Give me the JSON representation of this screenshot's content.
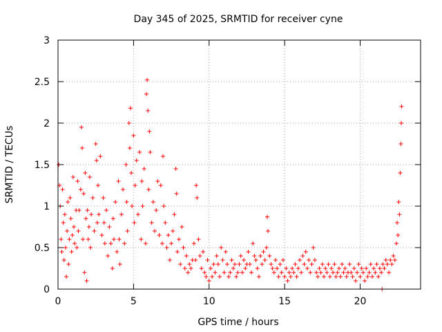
{
  "chart_data": {
    "type": "scatter",
    "title": "Day 345 of 2025, SRMTID for receiver cyne",
    "xlabel": "GPS time / hours",
    "ylabel": "SRMTID / TECUs",
    "xlim": [
      0,
      24
    ],
    "ylim": [
      0,
      3
    ],
    "xticks": [
      0,
      5,
      10,
      15,
      20
    ],
    "yticks": [
      0,
      0.5,
      1,
      1.5,
      2,
      2.5,
      3
    ],
    "xtick_labels": [
      "0",
      "5",
      "10",
      "15",
      "20"
    ],
    "ytick_labels": [
      "0",
      "0.5",
      "1",
      "1.5",
      "2",
      "2.5",
      "3"
    ],
    "grid": true,
    "marker": "+",
    "color": "#ff0000",
    "series": [
      {
        "name": "SRMTID",
        "points": [
          [
            0.05,
            1.5
          ],
          [
            0.1,
            1.25
          ],
          [
            0.15,
            1.0
          ],
          [
            0.2,
            0.6
          ],
          [
            0.25,
            0.45
          ],
          [
            0.3,
            1.2
          ],
          [
            0.35,
            0.8
          ],
          [
            0.4,
            0.35
          ],
          [
            0.45,
            0.9
          ],
          [
            0.5,
            0.5
          ],
          [
            0.55,
            0.15
          ],
          [
            0.6,
            0.7
          ],
          [
            0.65,
            1.05
          ],
          [
            0.7,
            0.3
          ],
          [
            0.75,
            0.6
          ],
          [
            0.8,
            1.1
          ],
          [
            0.85,
            0.85
          ],
          [
            0.9,
            0.45
          ],
          [
            0.95,
            0.65
          ],
          [
            1.0,
            1.35
          ],
          [
            1.05,
            0.75
          ],
          [
            1.1,
            0.55
          ],
          [
            1.2,
            0.95
          ],
          [
            1.25,
            0.5
          ],
          [
            1.3,
            1.3
          ],
          [
            1.35,
            0.7
          ],
          [
            1.4,
            0.95
          ],
          [
            1.5,
            1.2
          ],
          [
            1.55,
            1.95
          ],
          [
            1.6,
            1.7
          ],
          [
            1.65,
            0.6
          ],
          [
            1.7,
            1.15
          ],
          [
            1.75,
            0.2
          ],
          [
            1.8,
            1.4
          ],
          [
            1.85,
            0.85
          ],
          [
            1.9,
            0.1
          ],
          [
            1.95,
            0.95
          ],
          [
            2.0,
            0.6
          ],
          [
            2.05,
            0.75
          ],
          [
            2.1,
            1.35
          ],
          [
            2.15,
            0.5
          ],
          [
            2.2,
            0.9
          ],
          [
            2.3,
            1.1
          ],
          [
            2.4,
            0.7
          ],
          [
            2.5,
            1.75
          ],
          [
            2.55,
            1.55
          ],
          [
            2.6,
            0.8
          ],
          [
            2.65,
            1.25
          ],
          [
            2.7,
            0.9
          ],
          [
            2.8,
            1.6
          ],
          [
            2.9,
            0.65
          ],
          [
            3.0,
            1.1
          ],
          [
            3.05,
            0.8
          ],
          [
            3.1,
            0.55
          ],
          [
            3.2,
            0.95
          ],
          [
            3.3,
            0.4
          ],
          [
            3.4,
            0.75
          ],
          [
            3.5,
            0.55
          ],
          [
            3.6,
            0.25
          ],
          [
            3.65,
            0.85
          ],
          [
            3.7,
            0.6
          ],
          [
            3.8,
            1.05
          ],
          [
            3.9,
            0.45
          ],
          [
            4.0,
            1.3
          ],
          [
            4.05,
            0.6
          ],
          [
            4.1,
            0.3
          ],
          [
            4.2,
            0.9
          ],
          [
            4.3,
            1.2
          ],
          [
            4.4,
            0.55
          ],
          [
            4.5,
            1.5
          ],
          [
            4.55,
            1.05
          ],
          [
            4.6,
            0.7
          ],
          [
            4.7,
            2.0
          ],
          [
            4.75,
            1.7
          ],
          [
            4.8,
            2.18
          ],
          [
            4.85,
            1.4
          ],
          [
            4.9,
            1.0
          ],
          [
            5.0,
            1.85
          ],
          [
            5.05,
            0.8
          ],
          [
            5.1,
            1.25
          ],
          [
            5.2,
            1.55
          ],
          [
            5.3,
            0.9
          ],
          [
            5.4,
            1.65
          ],
          [
            5.5,
            0.6
          ],
          [
            5.55,
            1.3
          ],
          [
            5.6,
            1.0
          ],
          [
            5.7,
            1.45
          ],
          [
            5.8,
            0.55
          ],
          [
            5.85,
            2.35
          ],
          [
            5.9,
            2.52
          ],
          [
            5.95,
            2.15
          ],
          [
            6.0,
            1.2
          ],
          [
            6.05,
            1.9
          ],
          [
            6.1,
            1.65
          ],
          [
            6.2,
            0.8
          ],
          [
            6.3,
            1.05
          ],
          [
            6.4,
            0.7
          ],
          [
            6.5,
            0.95
          ],
          [
            6.6,
            1.3
          ],
          [
            6.7,
            0.65
          ],
          [
            6.8,
            1.25
          ],
          [
            6.9,
            0.55
          ],
          [
            6.95,
            1.6
          ],
          [
            7.0,
            1.0
          ],
          [
            7.1,
            0.8
          ],
          [
            7.2,
            0.5
          ],
          [
            7.3,
            0.65
          ],
          [
            7.4,
            0.35
          ],
          [
            7.5,
            0.55
          ],
          [
            7.6,
            0.7
          ],
          [
            7.7,
            0.9
          ],
          [
            7.8,
            1.45
          ],
          [
            7.85,
            1.15
          ],
          [
            7.9,
            0.45
          ],
          [
            8.0,
            0.6
          ],
          [
            8.1,
            0.3
          ],
          [
            8.2,
            0.75
          ],
          [
            8.3,
            0.5
          ],
          [
            8.4,
            0.25
          ],
          [
            8.5,
            0.4
          ],
          [
            8.6,
            0.2
          ],
          [
            8.7,
            0.3
          ],
          [
            8.8,
            0.25
          ],
          [
            8.9,
            0.35
          ],
          [
            9.0,
            0.55
          ],
          [
            9.1,
            0.35
          ],
          [
            9.15,
            1.25
          ],
          [
            9.2,
            1.1
          ],
          [
            9.3,
            0.6
          ],
          [
            9.4,
            0.4
          ],
          [
            9.5,
            0.25
          ],
          [
            9.6,
            0.45
          ],
          [
            9.7,
            0.2
          ],
          [
            9.8,
            0.15
          ],
          [
            9.9,
            0.35
          ],
          [
            10.0,
            0.1
          ],
          [
            10.1,
            0.25
          ],
          [
            10.2,
            0.15
          ],
          [
            10.3,
            0.3
          ],
          [
            10.4,
            0.2
          ],
          [
            10.5,
            0.4
          ],
          [
            10.6,
            0.3
          ],
          [
            10.7,
            0.15
          ],
          [
            10.8,
            0.5
          ],
          [
            10.9,
            0.35
          ],
          [
            11.0,
            0.2
          ],
          [
            11.1,
            0.45
          ],
          [
            11.2,
            0.3
          ],
          [
            11.3,
            0.15
          ],
          [
            11.4,
            0.2
          ],
          [
            11.5,
            0.35
          ],
          [
            11.6,
            0.25
          ],
          [
            11.7,
            0.3
          ],
          [
            11.8,
            0.15
          ],
          [
            11.9,
            0.2
          ],
          [
            12.0,
            0.3
          ],
          [
            12.1,
            0.4
          ],
          [
            12.2,
            0.2
          ],
          [
            12.3,
            0.35
          ],
          [
            12.4,
            0.25
          ],
          [
            12.5,
            0.3
          ],
          [
            12.6,
            0.45
          ],
          [
            12.7,
            0.3
          ],
          [
            12.8,
            0.2
          ],
          [
            12.9,
            0.55
          ],
          [
            13.0,
            0.4
          ],
          [
            13.1,
            0.35
          ],
          [
            13.2,
            0.25
          ],
          [
            13.3,
            0.15
          ],
          [
            13.4,
            0.4
          ],
          [
            13.5,
            0.3
          ],
          [
            13.6,
            0.45
          ],
          [
            13.7,
            0.35
          ],
          [
            13.8,
            0.5
          ],
          [
            13.85,
            0.87
          ],
          [
            13.9,
            0.7
          ],
          [
            14.0,
            0.4
          ],
          [
            14.1,
            0.3
          ],
          [
            14.2,
            0.25
          ],
          [
            14.3,
            0.2
          ],
          [
            14.4,
            0.35
          ],
          [
            14.5,
            0.25
          ],
          [
            14.6,
            0.15
          ],
          [
            14.7,
            0.3
          ],
          [
            14.8,
            0.2
          ],
          [
            14.9,
            0.35
          ],
          [
            15.0,
            0.15
          ],
          [
            15.1,
            0.25
          ],
          [
            15.2,
            0.1
          ],
          [
            15.3,
            0.2
          ],
          [
            15.4,
            0.15
          ],
          [
            15.5,
            0.25
          ],
          [
            15.6,
            0.2
          ],
          [
            15.7,
            0.3
          ],
          [
            15.8,
            0.15
          ],
          [
            15.9,
            0.25
          ],
          [
            16.0,
            0.35
          ],
          [
            16.1,
            0.2
          ],
          [
            16.2,
            0.4
          ],
          [
            16.3,
            0.3
          ],
          [
            16.4,
            0.45
          ],
          [
            16.5,
            0.25
          ],
          [
            16.6,
            0.35
          ],
          [
            16.7,
            0.2
          ],
          [
            16.8,
            0.3
          ],
          [
            16.9,
            0.5
          ],
          [
            17.0,
            0.35
          ],
          [
            17.1,
            0.2
          ],
          [
            17.2,
            0.15
          ],
          [
            17.3,
            0.25
          ],
          [
            17.4,
            0.2
          ],
          [
            17.5,
            0.3
          ],
          [
            17.6,
            0.15
          ],
          [
            17.7,
            0.25
          ],
          [
            17.8,
            0.2
          ],
          [
            17.9,
            0.3
          ],
          [
            18.0,
            0.15
          ],
          [
            18.1,
            0.25
          ],
          [
            18.2,
            0.2
          ],
          [
            18.3,
            0.3
          ],
          [
            18.4,
            0.15
          ],
          [
            18.5,
            0.2
          ],
          [
            18.6,
            0.25
          ],
          [
            18.7,
            0.15
          ],
          [
            18.8,
            0.3
          ],
          [
            18.9,
            0.2
          ],
          [
            19.0,
            0.25
          ],
          [
            19.1,
            0.15
          ],
          [
            19.2,
            0.2
          ],
          [
            19.3,
            0.3
          ],
          [
            19.4,
            0.2
          ],
          [
            19.5,
            0.15
          ],
          [
            19.6,
            0.25
          ],
          [
            19.7,
            0.1
          ],
          [
            19.8,
            0.2
          ],
          [
            19.9,
            0.3
          ],
          [
            20.0,
            0.15
          ],
          [
            20.1,
            0.25
          ],
          [
            20.2,
            0.2
          ],
          [
            20.3,
            0.1
          ],
          [
            20.4,
            0.25
          ],
          [
            20.5,
            0.15
          ],
          [
            20.6,
            0.2
          ],
          [
            20.7,
            0.3
          ],
          [
            20.8,
            0.15
          ],
          [
            20.9,
            0.25
          ],
          [
            21.0,
            0.2
          ],
          [
            21.1,
            0.3
          ],
          [
            21.2,
            0.15
          ],
          [
            21.3,
            0.25
          ],
          [
            21.4,
            0.2
          ],
          [
            21.45,
            0.0
          ],
          [
            21.5,
            0.3
          ],
          [
            21.6,
            0.25
          ],
          [
            21.7,
            0.35
          ],
          [
            21.8,
            0.3
          ],
          [
            21.9,
            0.2
          ],
          [
            22.0,
            0.35
          ],
          [
            22.1,
            0.3
          ],
          [
            22.2,
            0.4
          ],
          [
            22.3,
            0.35
          ],
          [
            22.4,
            0.55
          ],
          [
            22.45,
            0.8
          ],
          [
            22.5,
            0.65
          ],
          [
            22.55,
            1.05
          ],
          [
            22.6,
            0.9
          ],
          [
            22.65,
            1.4
          ],
          [
            22.7,
            1.75
          ],
          [
            22.72,
            2.0
          ],
          [
            22.74,
            2.2
          ]
        ]
      }
    ]
  }
}
